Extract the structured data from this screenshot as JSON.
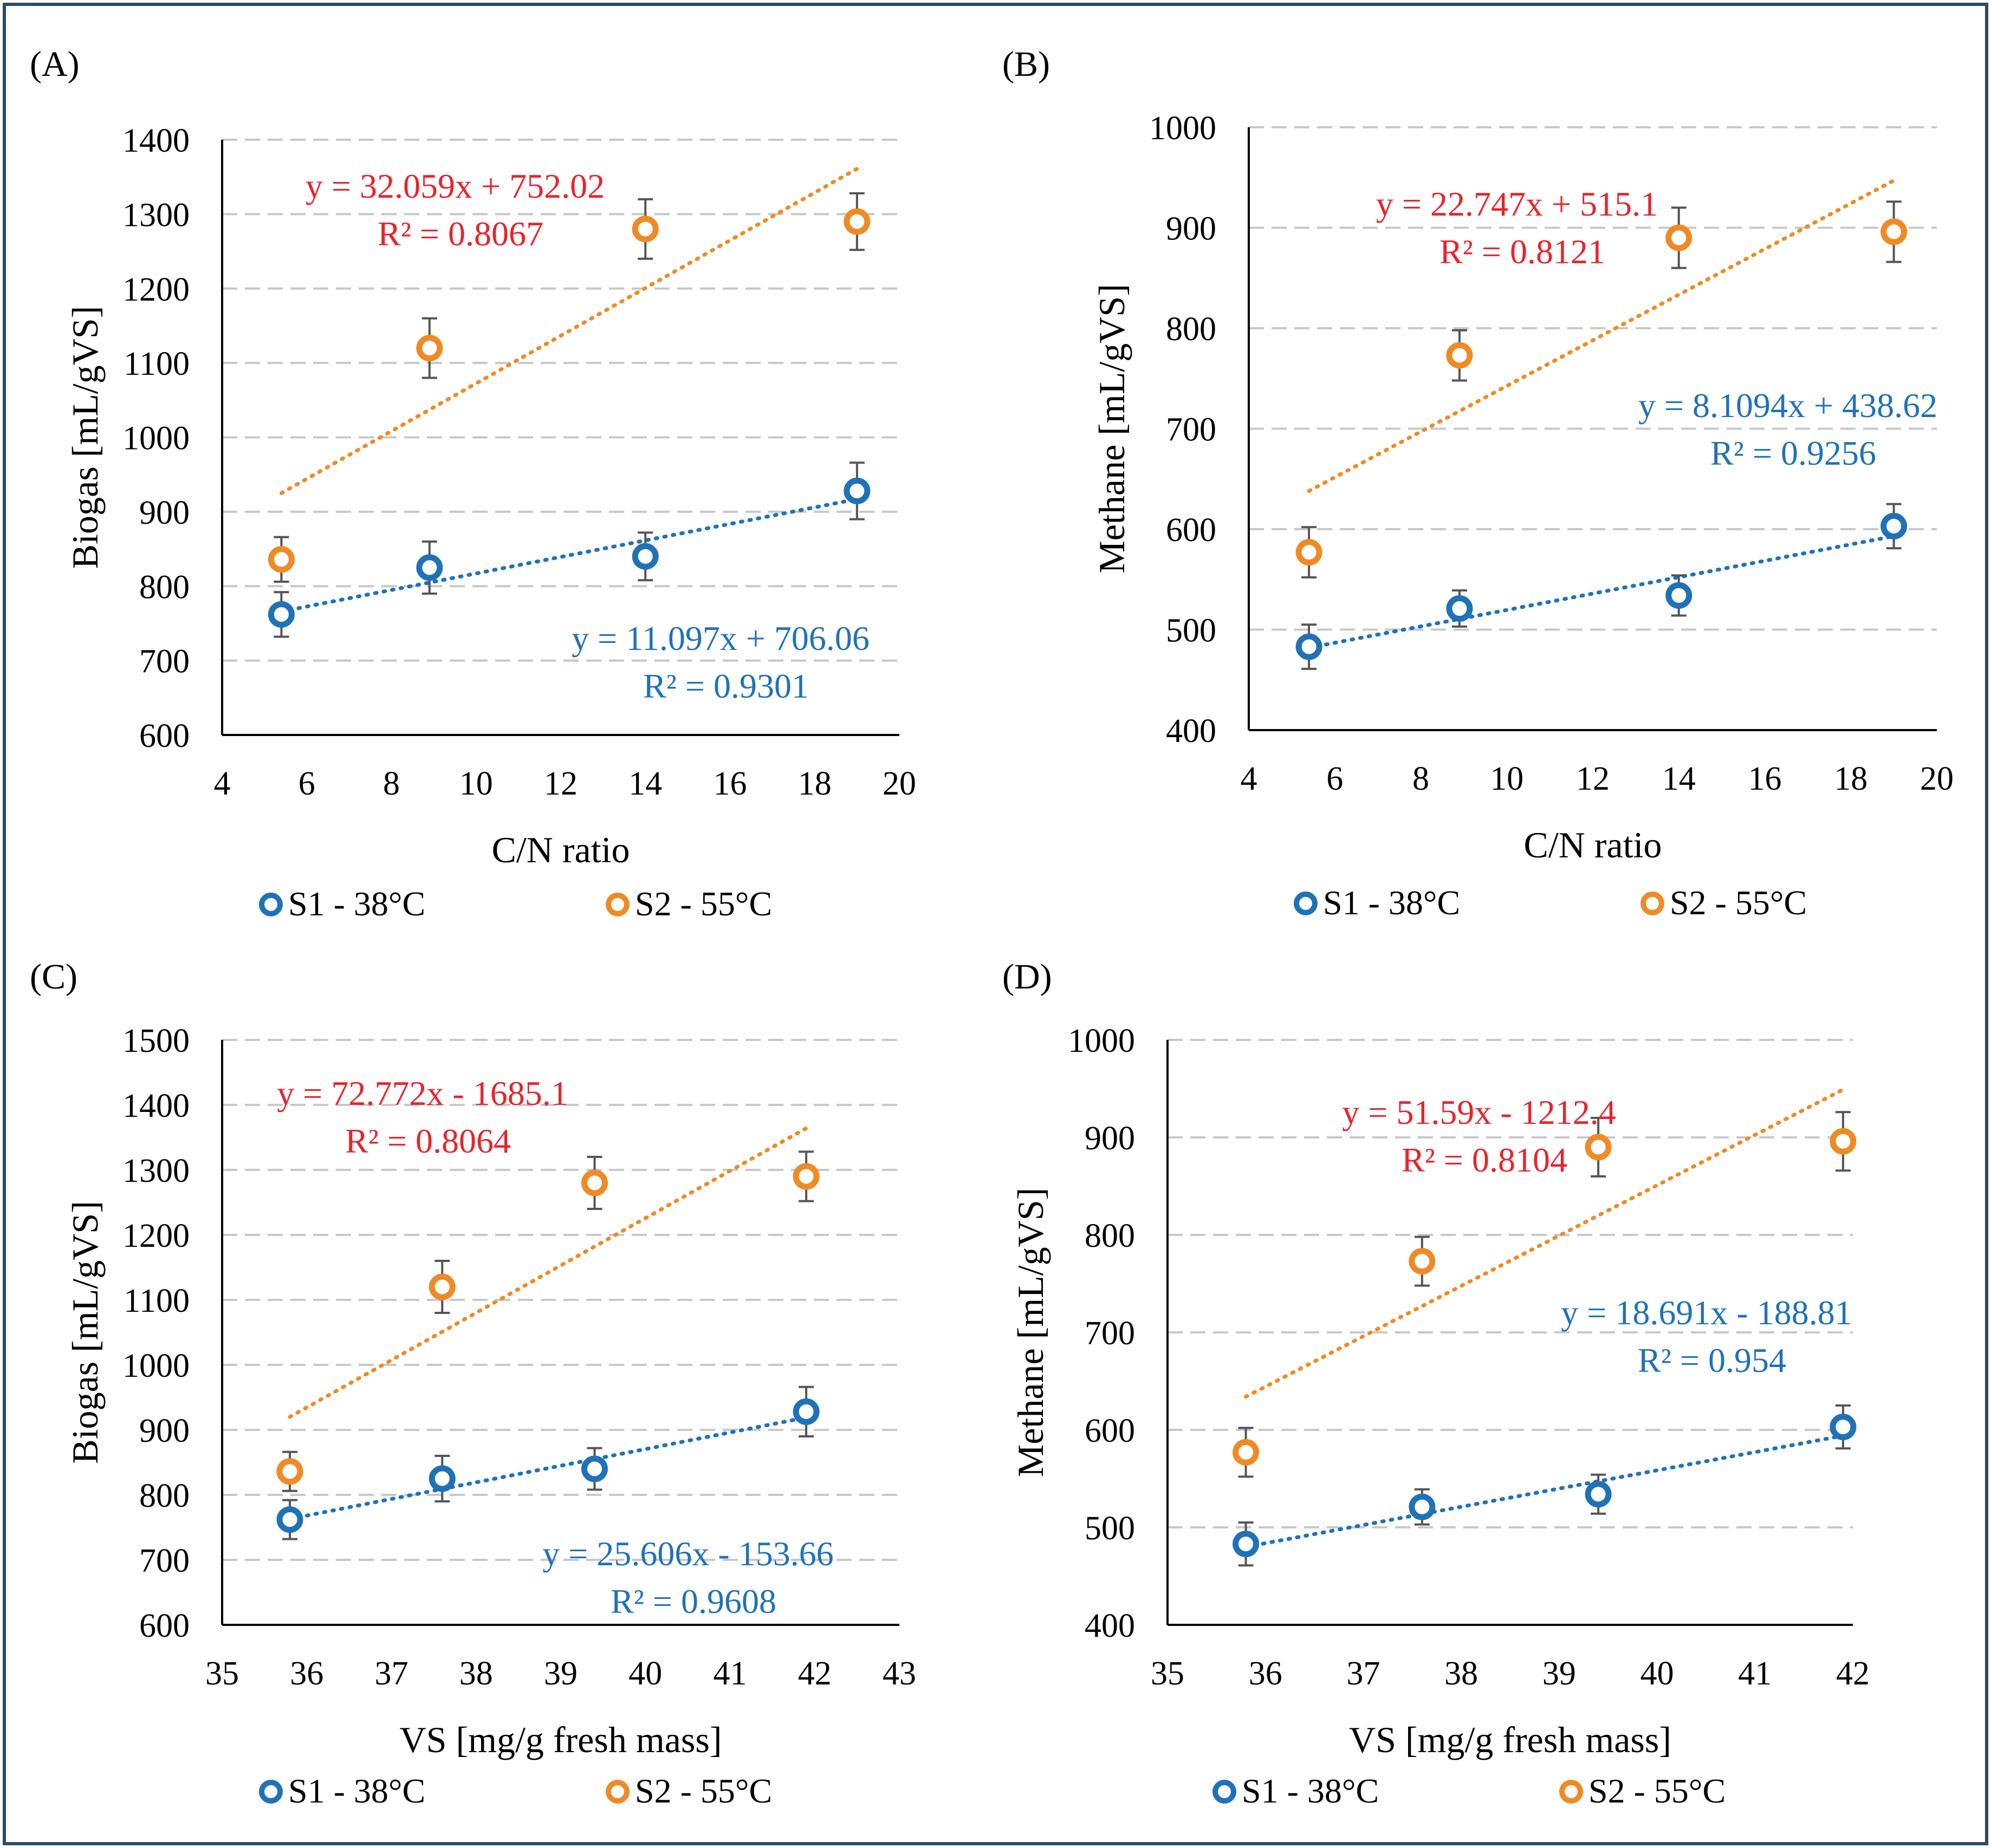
{
  "figure": {
    "border_color": "#2e4a66",
    "colors": {
      "s1": "#1f72b8",
      "s2": "#f08a24",
      "s2_equation": "#e8232b",
      "s1_equation": "#1f72b8"
    }
  },
  "chart_data": [
    {
      "type": "scatter",
      "panel_label": "(A)",
      "xlabel": "C/N ratio",
      "ylabel": "Biogas [mL/gVS]",
      "xlim": [
        4,
        20
      ],
      "ylim": [
        600,
        1400
      ],
      "xticks": [
        4,
        6,
        8,
        10,
        12,
        14,
        16,
        18,
        20
      ],
      "yticks": [
        600,
        700,
        800,
        900,
        1000,
        1100,
        1200,
        1300,
        1400
      ],
      "grid": true,
      "legend": [
        "S1 - 38°C",
        "S2 - 55°C"
      ],
      "legend_position": "bottom",
      "series": [
        {
          "name": "S1 - 38°C",
          "x": [
            5.4,
            8.9,
            14.0,
            19.0
          ],
          "y": [
            762,
            825,
            840,
            928
          ],
          "err": [
            30,
            35,
            32,
            38
          ],
          "trend": {
            "x": [
              5.4,
              19.0
            ],
            "y": [
              766,
              917
            ]
          },
          "equation": "y = 11.097x + 706.06",
          "r2": "R² = 0.9301"
        },
        {
          "name": "S2 - 55°C",
          "x": [
            5.4,
            8.9,
            14.0,
            19.0
          ],
          "y": [
            836,
            1120,
            1280,
            1290
          ],
          "err": [
            30,
            40,
            40,
            38
          ],
          "trend": {
            "x": [
              5.4,
              19.0
            ],
            "y": [
              925,
              1361
            ]
          },
          "equation": "y = 32.059x + 752.02",
          "r2": "R² = 0.8067"
        }
      ]
    },
    {
      "type": "scatter",
      "panel_label": "(B)",
      "xlabel": "C/N ratio",
      "ylabel": "Methane [mL/gVS]",
      "xlim": [
        4,
        20
      ],
      "ylim": [
        400,
        1000
      ],
      "xticks": [
        4,
        6,
        8,
        10,
        12,
        14,
        16,
        18,
        20
      ],
      "yticks": [
        400,
        500,
        600,
        700,
        800,
        900,
        1000
      ],
      "grid": true,
      "legend": [
        "S1 - 38°C",
        "S2 - 55°C"
      ],
      "legend_position": "bottom",
      "series": [
        {
          "name": "S1 - 38°C",
          "x": [
            5.4,
            8.9,
            14.0,
            19.0
          ],
          "y": [
            483,
            521,
            534,
            603
          ],
          "err": [
            22,
            18,
            20,
            22
          ],
          "trend": {
            "x": [
              5.4,
              19.0
            ],
            "y": [
              482,
              593
            ]
          },
          "equation": "y = 8.1094x + 438.62",
          "r2": "R² = 0.9256"
        },
        {
          "name": "S2 - 55°C",
          "x": [
            5.4,
            8.9,
            14.0,
            19.0
          ],
          "y": [
            577,
            773,
            890,
            896
          ],
          "err": [
            25,
            25,
            30,
            30
          ],
          "trend": {
            "x": [
              5.4,
              19.0
            ],
            "y": [
              638,
              947
            ]
          },
          "equation": "y = 22.747x + 515.1",
          "r2": "R² = 0.8121"
        }
      ]
    },
    {
      "type": "scatter",
      "panel_label": "(C)",
      "xlabel": "VS [mg/g fresh mass]",
      "ylabel": "Biogas [mL/gVS]",
      "xlim": [
        35,
        43
      ],
      "ylim": [
        600,
        1500
      ],
      "xticks": [
        35,
        36,
        37,
        38,
        39,
        40,
        41,
        42,
        43
      ],
      "yticks": [
        600,
        700,
        800,
        900,
        1000,
        1100,
        1200,
        1300,
        1400,
        1500
      ],
      "grid": true,
      "legend": [
        "S1 - 38°C",
        "S2 - 55°C"
      ],
      "legend_position": "bottom",
      "series": [
        {
          "name": "S1 - 38°C",
          "x": [
            35.8,
            37.6,
            39.4,
            41.9
          ],
          "y": [
            762,
            825,
            840,
            928
          ],
          "err": [
            30,
            35,
            32,
            38
          ],
          "trend": {
            "x": [
              35.8,
              41.9
            ],
            "y": [
              763,
              919
            ]
          },
          "equation": "y = 25.606x - 153.66",
          "r2": "R² = 0.9608"
        },
        {
          "name": "S2 - 55°C",
          "x": [
            35.8,
            37.6,
            39.4,
            41.9
          ],
          "y": [
            836,
            1120,
            1280,
            1290
          ],
          "err": [
            30,
            40,
            40,
            38
          ],
          "trend": {
            "x": [
              35.8,
              41.9
            ],
            "y": [
              920,
              1364
            ]
          },
          "equation": "y = 72.772x - 1685.1",
          "r2": "R² = 0.8064"
        }
      ]
    },
    {
      "type": "scatter",
      "panel_label": "(D)",
      "xlabel": "VS [mg/g fresh mass]",
      "ylabel": "Methane [mL/gVS]",
      "xlim": [
        35,
        42
      ],
      "ylim": [
        400,
        1000
      ],
      "xticks": [
        35,
        36,
        37,
        38,
        39,
        40,
        41,
        42
      ],
      "yticks": [
        400,
        500,
        600,
        700,
        800,
        900,
        1000
      ],
      "grid": true,
      "legend": [
        "S1 - 38°C",
        "S2 - 55°C"
      ],
      "legend_position": "bottom",
      "series": [
        {
          "name": "S1 - 38°C",
          "x": [
            35.8,
            37.6,
            39.4,
            41.9
          ],
          "y": [
            483,
            521,
            534,
            603
          ],
          "err": [
            22,
            18,
            20,
            22
          ],
          "trend": {
            "x": [
              35.8,
              41.9
            ],
            "y": [
              480,
              594
            ]
          },
          "equation": "y = 18.691x - 188.81",
          "r2": "R² = 0.954"
        },
        {
          "name": "S2 - 55°C",
          "x": [
            35.8,
            37.6,
            39.4,
            41.9
          ],
          "y": [
            577,
            773,
            890,
            896
          ],
          "err": [
            25,
            25,
            30,
            30
          ],
          "trend": {
            "x": [
              35.8,
              41.9
            ],
            "y": [
              634,
              949
            ]
          },
          "equation": "y = 51.59x - 1212.4",
          "r2": "R² = 0.8104"
        }
      ]
    }
  ]
}
